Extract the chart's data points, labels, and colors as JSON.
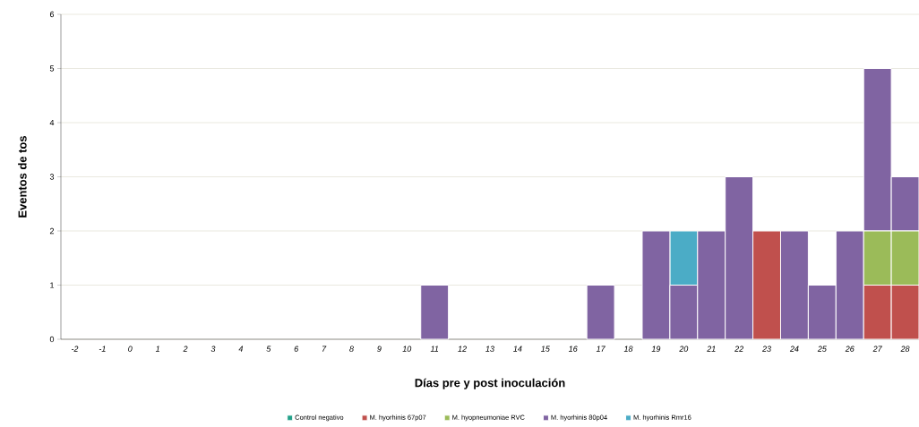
{
  "chart_data": {
    "type": "bar",
    "stacked": true,
    "xlabel": "Días pre y post inoculación",
    "ylabel": "Eventos de tos",
    "categories": [
      "-2",
      "-1",
      "0",
      "1",
      "2",
      "3",
      "4",
      "5",
      "6",
      "7",
      "8",
      "9",
      "10",
      "11",
      "12",
      "13",
      "14",
      "15",
      "16",
      "17",
      "18",
      "19",
      "20",
      "21",
      "22",
      "23",
      "24",
      "25",
      "26",
      "27",
      "28"
    ],
    "series": [
      {
        "name": "Control negativo",
        "color": "#23a089",
        "values": [
          0,
          0,
          0,
          0,
          0,
          0,
          0,
          0,
          0,
          0,
          0,
          0,
          0,
          0,
          0,
          0,
          0,
          0,
          0,
          0,
          0,
          0,
          0,
          0,
          0,
          0,
          0,
          0,
          0,
          0,
          0
        ]
      },
      {
        "name": "M. hyorhinis 67p07",
        "color": "#c0504d",
        "values": [
          0,
          0,
          0,
          0,
          0,
          0,
          0,
          0,
          0,
          0,
          0,
          0,
          0,
          0,
          0,
          0,
          0,
          0,
          0,
          0,
          0,
          0,
          0,
          0,
          0,
          2,
          0,
          0,
          0,
          1,
          1
        ]
      },
      {
        "name": "M. hyopneumoniae RVC",
        "color": "#9bbb59",
        "values": [
          0,
          0,
          0,
          0,
          0,
          0,
          0,
          0,
          0,
          0,
          0,
          0,
          0,
          0,
          0,
          0,
          0,
          0,
          0,
          0,
          0,
          0,
          0,
          0,
          0,
          0,
          0,
          0,
          0,
          1,
          1
        ]
      },
      {
        "name": "M. hyorhinis 80p04",
        "color": "#8064a2",
        "values": [
          0,
          0,
          0,
          0,
          0,
          0,
          0,
          0,
          0,
          0,
          0,
          0,
          0,
          1,
          0,
          0,
          0,
          0,
          0,
          1,
          0,
          2,
          1,
          2,
          3,
          0,
          2,
          1,
          2,
          3,
          1
        ]
      },
      {
        "name": "M. hyorhinis Rmr16",
        "color": "#4bacc6",
        "values": [
          0,
          0,
          0,
          0,
          0,
          0,
          0,
          0,
          0,
          0,
          0,
          0,
          0,
          0,
          0,
          0,
          0,
          0,
          0,
          0,
          0,
          0,
          1,
          0,
          0,
          0,
          0,
          0,
          0,
          0,
          0
        ]
      }
    ],
    "ylim": [
      0,
      6
    ],
    "yticks": [
      0,
      1,
      2,
      3,
      4,
      5,
      6
    ],
    "grid": "y",
    "legend": "bottom"
  }
}
